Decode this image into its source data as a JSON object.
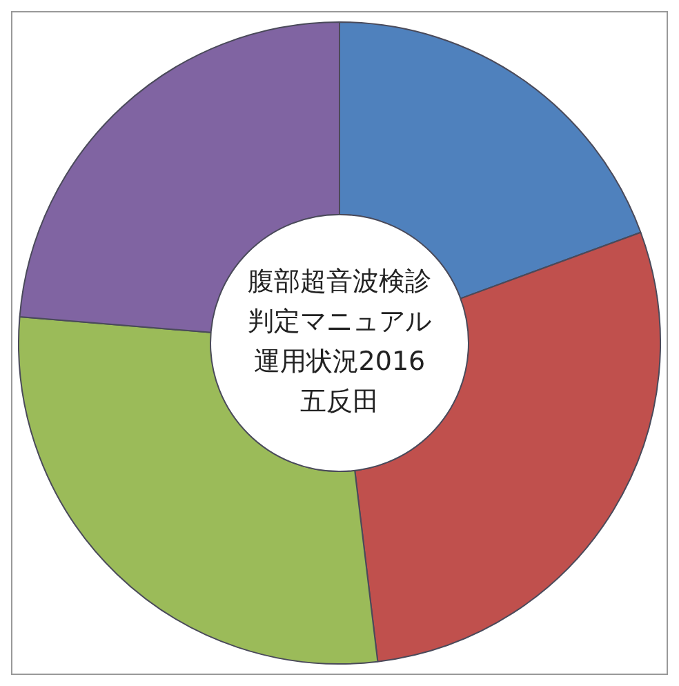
{
  "chart_data": {
    "type": "donut",
    "title": "腹部超音波検診判定マニュアル運用状況2016五反田",
    "categories": [
      null,
      null,
      null,
      null
    ],
    "values": [
      19.4,
      28.7,
      28.2,
      23.7
    ],
    "colors": [
      "#4f81bd",
      "#c0504d",
      "#9bbb59",
      "#8064a2"
    ],
    "legend": false
  }
}
